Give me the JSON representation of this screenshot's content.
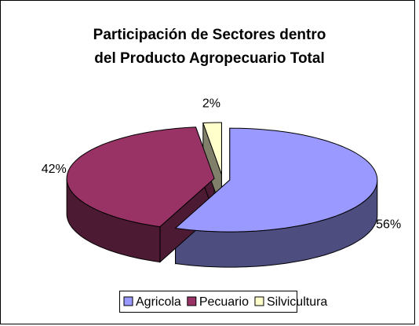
{
  "chart_data": {
    "type": "pie",
    "title": [
      "Participación de Sectores dentro",
      "del Producto Agropecuario Total"
    ],
    "categories": [
      "Agricola",
      "Pecuario",
      "Silvicultura"
    ],
    "values": [
      56,
      42,
      2
    ],
    "value_labels": [
      "56%",
      "42%",
      "2%"
    ],
    "colors": [
      "#9999ff",
      "#993366",
      "#ffffcc"
    ],
    "side_colors": [
      "#4d4d80",
      "#4d1a33",
      "#80806a"
    ],
    "legend": "bottom"
  }
}
